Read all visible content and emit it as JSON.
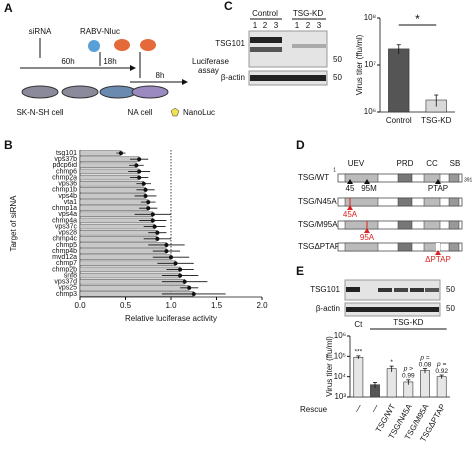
{
  "panel_labels": [
    "A",
    "B",
    "C",
    "D",
    "E"
  ],
  "schematic_a": {
    "sirna": "siRNA",
    "t1": "60h",
    "virus": "RABV-Nluc",
    "t2": "18h",
    "t3": "8h",
    "assay": [
      "Luciferase",
      "assay"
    ],
    "cell1": "SK-N-SH cell",
    "cell2": "NA cell",
    "reporter": "NanoLuc"
  },
  "blot_c": {
    "groups": [
      "Control",
      "TSG-KD"
    ],
    "lanes": [
      "1",
      "2",
      "3",
      "1",
      "2",
      "3"
    ],
    "rows": [
      "TSG101",
      "β-actin"
    ],
    "markers": [
      "50",
      "50"
    ]
  },
  "schematic_d": {
    "domains": [
      "UEV",
      "PRD",
      "CC",
      "SB"
    ],
    "constructs": [
      "TSG/WT",
      "TSG/N45A",
      "TSG/M95A",
      "TSGΔPTAP"
    ],
    "sites": [
      "45",
      "95M",
      "PTAP"
    ],
    "ends": [
      "1",
      "391"
    ],
    "mutations": [
      "45A",
      "95A",
      "ΔPTAP"
    ]
  },
  "blot_e": {
    "rows": [
      "TSG101",
      "β-actin"
    ],
    "markers": [
      "50",
      "50"
    ]
  },
  "chart_data": [
    {
      "type": "hbar",
      "xlabel": "Relative luciferase activity",
      "ylabel": "Target of siRNA",
      "categories": [
        "tsg101",
        "vps37b",
        "pdcp6id",
        "chmp6",
        "chmp2a",
        "vps36",
        "chmp1b",
        "vps4b",
        "vta1",
        "chmp1a",
        "vps4a",
        "chmp4a",
        "vps37c",
        "vps28",
        "chmp4c",
        "chmp5",
        "chmp4b",
        "mvd12a",
        "chmp7",
        "chmp2b",
        "snf8",
        "vps37d",
        "vps25",
        "chmp3"
      ],
      "values": [
        0.45,
        0.65,
        0.62,
        0.65,
        0.65,
        0.7,
        0.72,
        0.72,
        0.75,
        0.75,
        0.8,
        0.8,
        0.82,
        0.85,
        0.85,
        0.95,
        0.95,
        1.0,
        1.05,
        1.1,
        1.1,
        1.15,
        1.2,
        1.25
      ],
      "errors": [
        0.05,
        0.1,
        0.08,
        0.12,
        0.1,
        0.08,
        0.1,
        0.12,
        0.08,
        0.1,
        0.2,
        0.15,
        0.12,
        0.1,
        0.15,
        0.2,
        0.15,
        0.2,
        0.2,
        0.15,
        0.2,
        0.25,
        0.1,
        0.35
      ],
      "color": "#c8c8c8",
      "reference_line": 1,
      "xlim": [
        0,
        2
      ],
      "xticks": [
        {
          "value": 0,
          "label": "0.0"
        },
        0.5,
        {
          "value": 1,
          "label": "1.0"
        },
        1.5,
        {
          "value": 2,
          "label": "2.0"
        }
      ]
    },
    {
      "type": "bar",
      "log_scale": true,
      "ylabel": "Virus titer (ffu/ml)",
      "categories": [
        "Control",
        "TSG-KD"
      ],
      "values": [
        22000000,
        1800000
      ],
      "errors": [
        5000000,
        500000
      ],
      "colors": [
        "#555555",
        "#d9d9d9"
      ],
      "significance": "*",
      "ylim": [
        1000000,
        100000000
      ],
      "yticks": [
        {
          "value": 1000000,
          "label": "10⁶"
        },
        {
          "value": 10000000,
          "label": "10⁷"
        },
        {
          "value": 100000000,
          "label": "10⁸"
        }
      ]
    },
    {
      "type": "bar",
      "log_scale": true,
      "ylabel": "Virus titer (ffu/ml)",
      "categories": [
        "—",
        "—",
        "TSG/WT",
        "TSG/N45A",
        "TSG/M95A",
        "TSGΔPTAP"
      ],
      "values": [
        90000,
        4000,
        25000,
        5500,
        20000,
        10000
      ],
      "errors": [
        15000,
        1200,
        8000,
        1500,
        5000,
        2000
      ],
      "colors": [
        "#e6e6e6",
        "#555555",
        "#e6e6e6",
        "#e6e6e6",
        "#e6e6e6",
        "#e6e6e6"
      ],
      "annotations": [
        [
          "***"
        ],
        [],
        [
          "*"
        ],
        [
          "p >",
          "0.99"
        ],
        [
          "p =",
          "0.08"
        ],
        [
          "p =",
          "0.92"
        ]
      ],
      "group_labels": [
        "Ct",
        "TSG-KD"
      ],
      "row_label": "Rescue",
      "ylim": [
        1000,
        1000000
      ],
      "yticks": [
        {
          "value": 1000,
          "label": "10³"
        },
        {
          "value": 10000,
          "label": "10⁴"
        },
        {
          "value": 100000,
          "label": "10⁵"
        },
        {
          "value": 1000000,
          "label": "10⁶"
        }
      ]
    }
  ]
}
